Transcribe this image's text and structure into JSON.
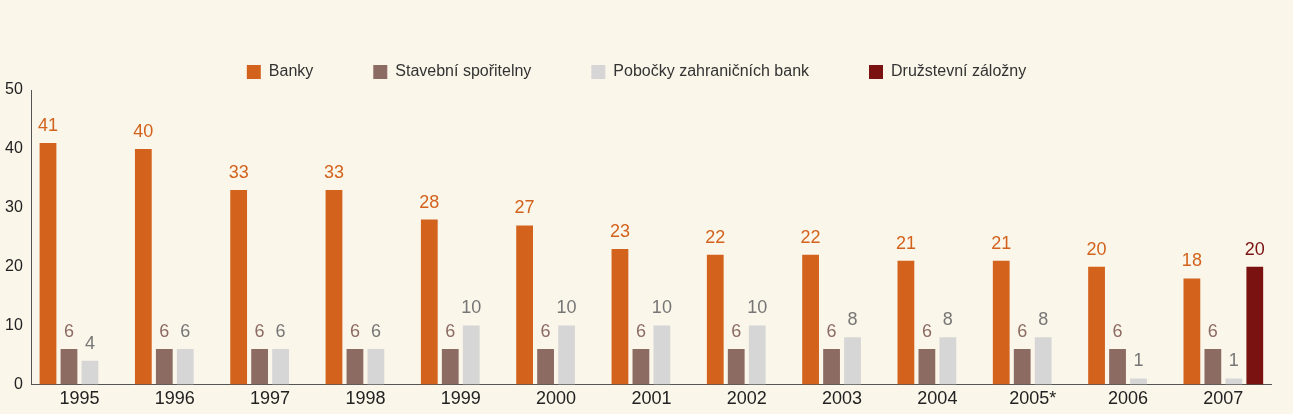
{
  "chart_data": {
    "type": "bar",
    "categories": [
      "1995",
      "1996",
      "1997",
      "1998",
      "1999",
      "2000",
      "2001",
      "2002",
      "2003",
      "2004",
      "2005*",
      "2006",
      "2007"
    ],
    "series": [
      {
        "name": "Banky",
        "color": "#d2621c",
        "values": [
          41,
          40,
          33,
          33,
          28,
          27,
          23,
          22,
          22,
          21,
          21,
          20,
          18
        ]
      },
      {
        "name": "Stavební spořitelny",
        "color": "#8c6b62",
        "values": [
          6,
          6,
          6,
          6,
          6,
          6,
          6,
          6,
          6,
          6,
          6,
          6,
          6
        ]
      },
      {
        "name": "Pobočky zahraničních bank",
        "color": "#d6d6d6",
        "values": [
          4,
          6,
          6,
          6,
          10,
          10,
          10,
          10,
          8,
          8,
          8,
          1,
          1
        ]
      },
      {
        "name": "Družstevní záložny",
        "color": "#7a1212",
        "values": [
          null,
          null,
          null,
          null,
          null,
          null,
          null,
          null,
          null,
          null,
          null,
          null,
          20
        ]
      }
    ],
    "ylim": [
      0,
      50
    ],
    "yticks": [
      0,
      10,
      20,
      30,
      40,
      50
    ],
    "grid": false,
    "legend": "top",
    "data_labels": true
  }
}
